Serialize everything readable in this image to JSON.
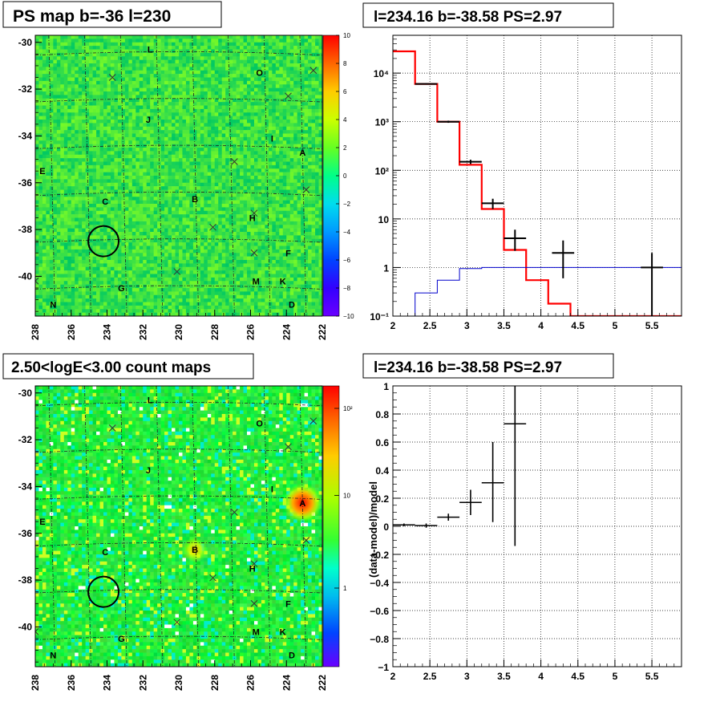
{
  "chart_data": [
    {
      "type": "heatmap",
      "title": "PS map b=-36 l=230",
      "x_ticks": [
        "238",
        "236",
        "234",
        "232",
        "230",
        "228",
        "226",
        "224",
        "222"
      ],
      "x_range": [
        238,
        222
      ],
      "y_ticks": [
        "-30",
        "-32",
        "-34",
        "-36",
        "-38",
        "-40"
      ],
      "y_range": [
        -41.7,
        -29.7
      ],
      "colorbar": {
        "range": [
          -10,
          10
        ],
        "ticks": [
          "10",
          "8",
          "6",
          "4",
          "2",
          "0",
          "−2",
          "−4",
          "−6",
          "−8",
          "−10"
        ]
      },
      "sources": [
        {
          "label": "L",
          "l": 231.6,
          "b": -30.3
        },
        {
          "label": "O",
          "l": 225.5,
          "b": -31.3
        },
        {
          "label": "J",
          "l": 231.7,
          "b": -33.3
        },
        {
          "label": "I",
          "l": 224.8,
          "b": -34.1
        },
        {
          "label": "A",
          "l": 223.1,
          "b": -34.7
        },
        {
          "label": "E",
          "l": 237.6,
          "b": -35.5
        },
        {
          "label": "C",
          "l": 234.1,
          "b": -36.8
        },
        {
          "label": "B",
          "l": 229.1,
          "b": -36.7
        },
        {
          "label": "H",
          "l": 225.9,
          "b": -37.5
        },
        {
          "label": "F",
          "l": 223.9,
          "b": -39.0
        },
        {
          "label": "M",
          "l": 225.7,
          "b": -40.2
        },
        {
          "label": "K",
          "l": 224.2,
          "b": -40.2
        },
        {
          "label": "G",
          "l": 233.2,
          "b": -40.5
        },
        {
          "label": "D",
          "l": 223.7,
          "b": -41.2
        },
        {
          "label": "N",
          "l": 237.0,
          "b": -41.2
        }
      ],
      "markers": [
        {
          "l": 233.7,
          "b": -31.5
        },
        {
          "l": 223.9,
          "b": -32.3
        },
        {
          "l": 226.9,
          "b": -35.1
        },
        {
          "l": 222.9,
          "b": -36.3
        },
        {
          "l": 225.8,
          "b": -37.3
        },
        {
          "l": 228.1,
          "b": -37.9
        },
        {
          "l": 225.8,
          "b": -39.0
        },
        {
          "l": 230.1,
          "b": -39.8
        },
        {
          "l": 238.0,
          "b": -40.2
        },
        {
          "l": 222.5,
          "b": -31.2
        }
      ],
      "circle": {
        "l": 234.2,
        "b": -38.5,
        "r_deg": 0.5
      }
    },
    {
      "type": "line",
      "title": "l=234.16 b=-38.58 PS=2.97",
      "x_ticks": [
        "2",
        "2.5",
        "3",
        "3.5",
        "4",
        "4.5",
        "5",
        "5.5"
      ],
      "xlim": [
        2,
        5.9
      ],
      "log_y": true,
      "ylim": [
        0.1,
        60000
      ],
      "y_ticks": [
        "10⁻¹",
        "1",
        "10",
        "10²",
        "10³",
        "10⁴"
      ],
      "series": [
        {
          "color": "#ff0000",
          "kind": "step",
          "edges": [
            2,
            2.3,
            2.6,
            2.9,
            3.2,
            3.5,
            3.8,
            4.1,
            4.4,
            4.7,
            5,
            5.3,
            5.6,
            5.9
          ],
          "values": [
            28000,
            6000,
            1000,
            130,
            16,
            2.3,
            0.55,
            0.18,
            0.1,
            0.1,
            0.1,
            0.1,
            0.1
          ]
        },
        {
          "color": "#0000cc",
          "kind": "step",
          "edges": [
            2,
            2.3,
            2.6,
            2.9,
            3.2,
            3.5,
            3.8,
            4.1,
            4.4,
            4.7,
            5,
            5.3,
            5.6,
            5.9
          ],
          "values": [
            0.05,
            0.3,
            0.55,
            0.95,
            1.0,
            1.0,
            1.0,
            1.0,
            1.0,
            1.0,
            1.0,
            1.0,
            1.0
          ]
        },
        {
          "color": "#000000",
          "kind": "errorbar",
          "points": [
            {
              "x": 2.45,
              "y": 6000,
              "xerr": 0.15,
              "ylo": 5800,
              "yhi": 6200
            },
            {
              "x": 2.75,
              "y": 1000,
              "xerr": 0.15,
              "ylo": 950,
              "yhi": 1050
            },
            {
              "x": 3.05,
              "y": 150,
              "xerr": 0.15,
              "ylo": 135,
              "yhi": 165
            },
            {
              "x": 3.35,
              "y": 21,
              "xerr": 0.15,
              "ylo": 16,
              "yhi": 26
            },
            {
              "x": 3.65,
              "y": 4,
              "xerr": 0.15,
              "ylo": 2.2,
              "yhi": 6
            },
            {
              "x": 4.3,
              "y": 2,
              "xerr": 0.15,
              "ylo": 0.6,
              "yhi": 3.6
            },
            {
              "x": 5.5,
              "y": 1,
              "xerr": 0.15,
              "ylo": 0.1,
              "yhi": 2
            }
          ]
        }
      ]
    },
    {
      "type": "heatmap",
      "title": "2.50<logE<3.00 count maps",
      "x_ticks": [
        "238",
        "236",
        "234",
        "232",
        "230",
        "228",
        "226",
        "224",
        "222"
      ],
      "x_range": [
        238,
        222
      ],
      "y_ticks": [
        "-30",
        "-32",
        "-34",
        "-36",
        "-38",
        "-40"
      ],
      "y_range": [
        -41.7,
        -29.7
      ],
      "colorbar": {
        "log": true,
        "ticks": [
          "10²",
          "10",
          "1"
        ]
      },
      "hot_spots": [
        {
          "l": 223.1,
          "b": -34.7,
          "strength": 1.0,
          "radius_deg": 1.1
        },
        {
          "l": 229.1,
          "b": -36.7,
          "strength": 0.45,
          "radius_deg": 0.7
        }
      ]
    },
    {
      "type": "scatter",
      "title": "l=234.16 b=-38.58 PS=2.97",
      "ylabel": "(data-model)/model",
      "x_ticks": [
        "2",
        "2.5",
        "3",
        "3.5",
        "4",
        "4.5",
        "5",
        "5.5"
      ],
      "xlim": [
        2,
        5.9
      ],
      "y_ticks": [
        "1",
        "0.8",
        "0.6",
        "0.4",
        "0.2",
        "0",
        "−0.2",
        "−0.4",
        "−0.6",
        "−0.8",
        "−1"
      ],
      "ylim": [
        -1,
        1
      ],
      "points": [
        {
          "x": 2.15,
          "y": 0.01,
          "xerr": 0.15,
          "ylo": 0.0,
          "yhi": 0.02
        },
        {
          "x": 2.45,
          "y": 0.005,
          "xerr": 0.15,
          "ylo": -0.01,
          "yhi": 0.02
        },
        {
          "x": 2.75,
          "y": 0.065,
          "xerr": 0.15,
          "ylo": 0.04,
          "yhi": 0.09
        },
        {
          "x": 3.05,
          "y": 0.17,
          "xerr": 0.15,
          "ylo": 0.08,
          "yhi": 0.26
        },
        {
          "x": 3.35,
          "y": 0.31,
          "xerr": 0.15,
          "ylo": 0.03,
          "yhi": 0.6
        },
        {
          "x": 3.65,
          "y": 0.73,
          "xerr": 0.15,
          "ylo": -0.14,
          "yhi": 1.0
        }
      ]
    }
  ]
}
